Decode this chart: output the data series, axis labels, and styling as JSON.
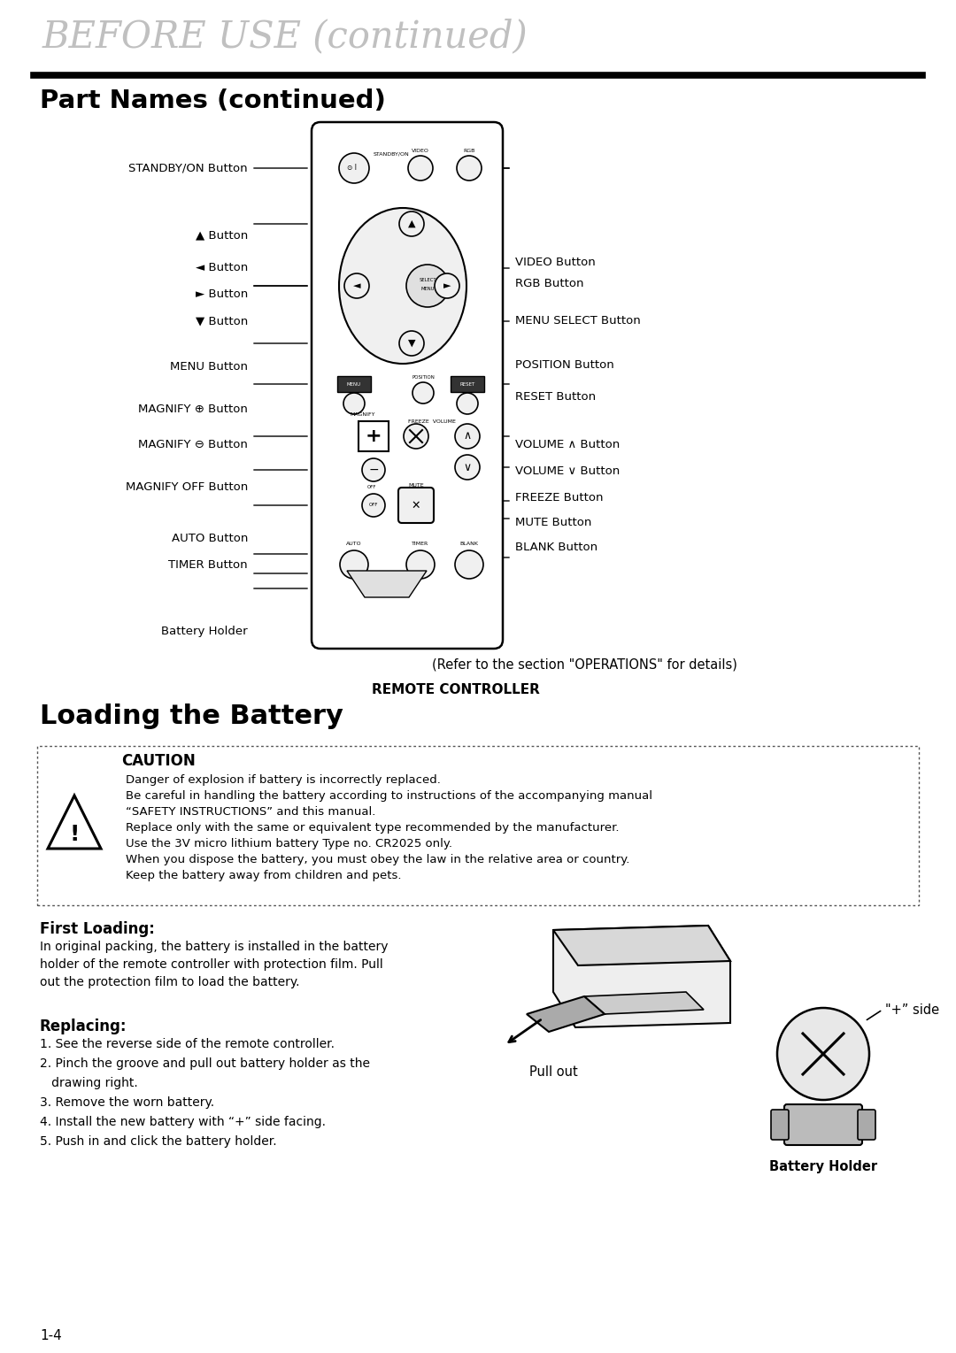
{
  "title_italic": "BEFORE USE (continued)",
  "section1_title": "Part Names (continued)",
  "section2_title": "Loading the Battery",
  "caution_title": "CAUTION",
  "caution_lines": [
    "Danger of explosion if battery is incorrectly replaced.",
    "Be careful in handling the battery according to instructions of the accompanying manual",
    "“SAFETY INSTRUCTIONS” and this manual.",
    "Replace only with the same or equivalent type recommended by the manufacturer.",
    "Use the 3V micro lithium battery Type no. CR2025 only.",
    "When you dispose the battery, you must obey the law in the relative area or country.",
    "Keep the battery away from children and pets."
  ],
  "first_loading_title": "First Loading:",
  "first_loading_text": "In original packing, the battery is installed in the battery\nholder of the remote controller with protection film. Pull\nout the protection film to load the battery.",
  "replacing_title": "Replacing:",
  "replacing_items": [
    "1. See the reverse side of the remote controller.",
    "2. Pinch the groove and pull out battery holder as the",
    "   drawing right.",
    "3. Remove the worn battery.",
    "4. Install the new battery with “+” side facing.",
    "5. Push in and click the battery holder."
  ],
  "page_number": "1-4",
  "remote_controller_label": "REMOTE CONTROLLER",
  "refer_text": "(Refer to the section \"OPERATIONS\" for details)",
  "bg_color": "#ffffff",
  "text_color": "#000000"
}
